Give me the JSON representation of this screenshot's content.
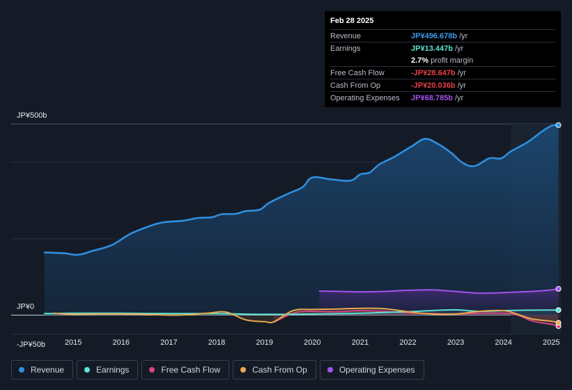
{
  "tooltip": {
    "date": "Feb 28 2025",
    "rows": [
      {
        "label": "Revenue",
        "value": "JP¥496.678b",
        "unit": "/yr",
        "color": "#3d9be9"
      },
      {
        "label": "Earnings",
        "value": "JP¥13.447b",
        "unit": "/yr",
        "color": "#5de3d6"
      },
      {
        "label": "",
        "value": "2.7%",
        "unit": "profit margin",
        "color": "#ffffff"
      },
      {
        "label": "Free Cash Flow",
        "value": "-JP¥28.647b",
        "unit": "/yr",
        "color": "#e8404a"
      },
      {
        "label": "Cash From Op",
        "value": "-JP¥20.036b",
        "unit": "/yr",
        "color": "#e8404a"
      },
      {
        "label": "Operating Expenses",
        "value": "JP¥68.785b",
        "unit": "/yr",
        "color": "#a453f0"
      }
    ]
  },
  "legend": [
    {
      "label": "Revenue",
      "color": "#2f8fe0"
    },
    {
      "label": "Earnings",
      "color": "#5de3d6"
    },
    {
      "label": "Free Cash Flow",
      "color": "#d4487f"
    },
    {
      "label": "Cash From Op",
      "color": "#e8a94f"
    },
    {
      "label": "Operating Expenses",
      "color": "#a453f0"
    }
  ],
  "chart_data": {
    "type": "area",
    "title": "",
    "ylim": [
      -50,
      500
    ],
    "y_tick_labels": [
      "JP¥500b",
      "JP¥0",
      "-JP¥50b"
    ],
    "y_tick_values": [
      500,
      0,
      -50
    ],
    "x_tick_labels": [
      "2015",
      "2016",
      "2017",
      "2018",
      "2019",
      "2020",
      "2021",
      "2022",
      "2023",
      "2024",
      "2025"
    ],
    "x_tick_values": [
      2015,
      2016,
      2017,
      2018,
      2019,
      2020,
      2021,
      2022,
      2023,
      2024,
      2025
    ],
    "xlim": [
      2013.7,
      2025.2
    ],
    "highlight_start": 2024.15,
    "series": [
      {
        "name": "Revenue",
        "color": "#2f8fe0",
        "x": [
          2014.4,
          2014.8,
          2015.1,
          2015.4,
          2015.8,
          2016.2,
          2016.6,
          2016.9,
          2017.3,
          2017.6,
          2017.9,
          2018.1,
          2018.4,
          2018.6,
          2018.9,
          2019.1,
          2019.5,
          2019.8,
          2020.0,
          2020.4,
          2020.8,
          2021.0,
          2021.2,
          2021.4,
          2021.7,
          2021.9,
          2022.1,
          2022.35,
          2022.6,
          2022.9,
          2023.15,
          2023.4,
          2023.7,
          2023.95,
          2024.15,
          2024.5,
          2024.8,
          2025.0,
          2025.15
        ],
        "values": [
          164,
          162,
          158,
          168,
          183,
          213,
          233,
          243,
          247,
          254,
          256,
          264,
          265,
          272,
          276,
          294,
          318,
          335,
          360,
          355,
          352,
          368,
          373,
          394,
          413,
          428,
          443,
          461,
          450,
          425,
          398,
          390,
          410,
          410,
          428,
          452,
          480,
          495,
          497
        ]
      },
      {
        "name": "Earnings",
        "color": "#5de3d6",
        "x": [
          2014.4,
          2015.0,
          2016.0,
          2017.0,
          2018.0,
          2019.0,
          2020.0,
          2021.0,
          2022.0,
          2022.5,
          2023.0,
          2023.5,
          2024.0,
          2024.5,
          2025.15
        ],
        "values": [
          4,
          5,
          5,
          4,
          4,
          2,
          3,
          5,
          9,
          12,
          14,
          10,
          12,
          13,
          13.4
        ]
      },
      {
        "name": "Free Cash Flow",
        "color": "#d4487f",
        "x": [
          2019.2,
          2019.6,
          2019.9,
          2020.5,
          2021.0,
          2021.5,
          2022.0,
          2022.5,
          2023.0,
          2023.5,
          2024.0,
          2024.3,
          2024.6,
          2025.0,
          2025.15
        ],
        "values": [
          -18,
          5,
          10,
          9,
          12,
          10,
          6,
          4,
          3,
          5,
          5,
          0,
          -15,
          -24,
          -28.6
        ]
      },
      {
        "name": "Cash From Op",
        "color": "#e8a94f",
        "x": [
          2014.6,
          2015.0,
          2015.5,
          2016.0,
          2016.5,
          2017.0,
          2017.4,
          2017.8,
          2018.2,
          2018.6,
          2019.0,
          2019.2,
          2019.6,
          2020.0,
          2020.5,
          2021.0,
          2021.5,
          2022.0,
          2022.5,
          2023.0,
          2023.5,
          2024.0,
          2024.3,
          2024.6,
          2025.0,
          2025.15
        ],
        "values": [
          5,
          2,
          3,
          3,
          2,
          0,
          1,
          5,
          8,
          -12,
          -17,
          -17,
          12,
          15,
          16,
          18,
          17,
          9,
          3,
          3,
          10,
          12,
          2,
          -10,
          -16,
          -20
        ]
      },
      {
        "name": "Operating Expenses",
        "color": "#a453f0",
        "x": [
          2020.15,
          2020.6,
          2021.0,
          2021.5,
          2022.0,
          2022.5,
          2023.0,
          2023.4,
          2023.8,
          2024.2,
          2024.6,
          2025.0,
          2025.15
        ],
        "values": [
          63,
          62,
          61,
          62,
          65,
          66,
          62,
          58,
          58,
          60,
          62,
          66,
          68.8
        ]
      }
    ]
  }
}
